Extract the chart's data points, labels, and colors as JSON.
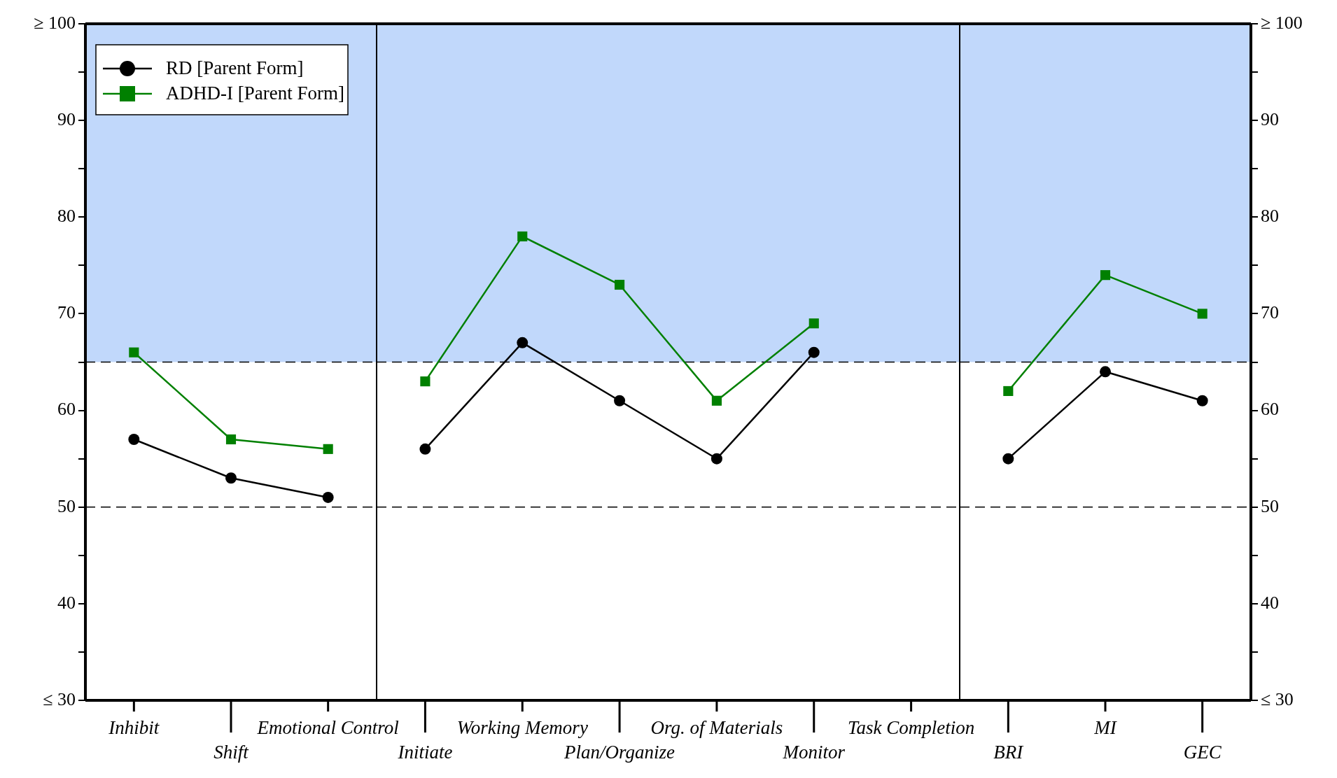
{
  "chart_data": [
    {
      "type": "line",
      "categories": [
        "Inhibit",
        "Shift",
        "Emotional Control"
      ],
      "series": [
        {
          "name": "RD [Parent Form]",
          "color": "#000000",
          "marker": "circle",
          "values": [
            57,
            53,
            51
          ]
        },
        {
          "name": "ADHD-I [Parent Form]",
          "color": "#008000",
          "marker": "square",
          "values": [
            66,
            57,
            56
          ]
        }
      ],
      "ylim": [
        30,
        100
      ],
      "yticks": [
        {
          "value": 30,
          "label": "≤ 30"
        },
        {
          "value": 35,
          "label": null
        },
        40,
        {
          "value": 45,
          "label": null
        },
        50,
        {
          "value": 55,
          "label": null
        },
        60,
        {
          "value": 65,
          "label": null
        },
        70,
        {
          "value": 75,
          "label": null
        },
        80,
        {
          "value": 85,
          "label": null
        },
        90,
        {
          "value": 95,
          "label": null
        },
        {
          "value": 100,
          "label": "≥ 100"
        }
      ],
      "bands": [
        {
          "axis": "y",
          "from": 65,
          "to": 100,
          "color": "#c1d8fb"
        }
      ],
      "ref_lines": [
        {
          "axis": "y",
          "value": 65,
          "color": "#000000",
          "line_style": "dashed"
        },
        {
          "axis": "y",
          "value": 50,
          "color": "#000000",
          "line_style": "dashed"
        }
      ],
      "legend": "top left",
      "grid": false
    },
    {
      "type": "line",
      "categories": [
        "Initiate",
        "Working Memory",
        "Plan/Organize",
        "Org. of Materials",
        "Monitor",
        "Task Completion"
      ],
      "series": [
        {
          "color": "#000000",
          "marker": "circle",
          "values": [
            56,
            67,
            61,
            55,
            66,
            null
          ]
        },
        {
          "color": "#008000",
          "marker": "square",
          "values": [
            63,
            78,
            73,
            61,
            69,
            null
          ]
        }
      ],
      "ylim": [
        30,
        100
      ],
      "tick_labels": "x",
      "bands": [
        {
          "axis": "y",
          "from": 65,
          "to": 100,
          "color": "#c1d8fb"
        }
      ],
      "ref_lines": [
        {
          "axis": "y",
          "value": 65,
          "color": "#000000",
          "line_style": "dashed"
        },
        {
          "axis": "y",
          "value": 50,
          "color": "#000000",
          "line_style": "dashed"
        }
      ],
      "grid": false
    },
    {
      "type": "line",
      "categories": [
        "BRI",
        "MI",
        "GEC"
      ],
      "series": [
        {
          "color": "#000000",
          "marker": "circle",
          "axis": "y2",
          "values": [
            55,
            64,
            61
          ]
        },
        {
          "color": "#008000",
          "marker": "square",
          "axis": "y2",
          "values": [
            62,
            74,
            70
          ]
        }
      ],
      "y2lim": [
        30,
        100
      ],
      "y2ticks": [
        {
          "value": 30,
          "label": "≤ 30"
        },
        {
          "value": 35,
          "label": null
        },
        40,
        {
          "value": 45,
          "label": null
        },
        50,
        {
          "value": 55,
          "label": null
        },
        60,
        {
          "value": 65,
          "label": null
        },
        70,
        {
          "value": 75,
          "label": null
        },
        80,
        {
          "value": 85,
          "label": null
        },
        90,
        {
          "value": 95,
          "label": null
        },
        {
          "value": 100,
          "label": "≥ 100"
        }
      ],
      "bands": [
        {
          "axis": "y2",
          "from": 65,
          "to": 100,
          "color": "#c1d8fb"
        }
      ],
      "ref_lines": [
        {
          "axis": "y2",
          "value": 65,
          "color": "#000000",
          "line_style": "dashed"
        },
        {
          "axis": "y2",
          "value": 50,
          "color": "#000000",
          "line_style": "dashed"
        }
      ],
      "grid": false
    }
  ]
}
